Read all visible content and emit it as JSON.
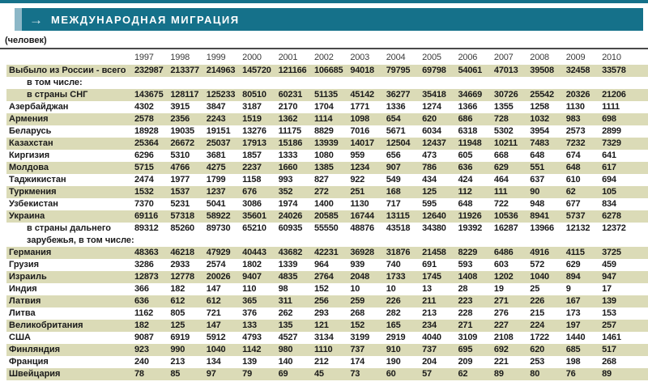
{
  "header": {
    "arrow_icon": "arrow-right",
    "title": "МЕЖДУНАРОДНАЯ МИГРАЦИЯ",
    "unit_label": "(человек)"
  },
  "colors": {
    "banner_teal": "#15718a",
    "banner_light_strip": "#8cb7c7",
    "row_shaded_beige": "#dbdbb7",
    "rule_dark": "#4a4a4a"
  },
  "chart_data": {
    "type": "table",
    "title": "МЕЖДУНАРОДНАЯ МИГРАЦИЯ",
    "unit": "(человек)",
    "legend_position": "none",
    "grid": false,
    "columns": [
      "1997",
      "1998",
      "1999",
      "2000",
      "2001",
      "2002",
      "2003",
      "2004",
      "2005",
      "2006",
      "2007",
      "2008",
      "2009",
      "2010"
    ],
    "rows": [
      {
        "label": "Выбыло из России - всего",
        "indent": 0,
        "shaded": true,
        "values": [
          232987,
          213377,
          214963,
          145720,
          121166,
          106685,
          94018,
          79795,
          69798,
          54061,
          47013,
          39508,
          32458,
          33578
        ]
      },
      {
        "label": "в том числе:",
        "indent": 1,
        "shaded": false,
        "values": []
      },
      {
        "label": "в страны СНГ",
        "indent": 1,
        "shaded": true,
        "values": [
          143675,
          128117,
          125233,
          80510,
          60231,
          51135,
          45142,
          36277,
          35418,
          34669,
          30726,
          25542,
          20326,
          21206
        ]
      },
      {
        "label": "Азербайджан",
        "indent": 0,
        "shaded": false,
        "values": [
          4302,
          3915,
          3847,
          3187,
          2170,
          1704,
          1771,
          1336,
          1274,
          1366,
          1355,
          1258,
          1130,
          1111
        ]
      },
      {
        "label": "Армения",
        "indent": 0,
        "shaded": true,
        "values": [
          2578,
          2356,
          2243,
          1519,
          1362,
          1114,
          1098,
          654,
          620,
          686,
          728,
          1032,
          983,
          698
        ]
      },
      {
        "label": "Беларусь",
        "indent": 0,
        "shaded": false,
        "values": [
          18928,
          19035,
          19151,
          13276,
          11175,
          8829,
          7016,
          5671,
          6034,
          6318,
          5302,
          3954,
          2573,
          2899
        ]
      },
      {
        "label": "Казахстан",
        "indent": 0,
        "shaded": true,
        "values": [
          25364,
          26672,
          25037,
          17913,
          15186,
          13939,
          14017,
          12504,
          12437,
          11948,
          10211,
          7483,
          7232,
          7329
        ]
      },
      {
        "label": "Киргизия",
        "indent": 0,
        "shaded": false,
        "values": [
          6296,
          5310,
          3681,
          1857,
          1333,
          1080,
          959,
          656,
          473,
          605,
          668,
          648,
          674,
          641
        ]
      },
      {
        "label": "Молдова",
        "indent": 0,
        "shaded": true,
        "values": [
          5715,
          4766,
          4275,
          2237,
          1660,
          1385,
          1234,
          907,
          786,
          636,
          629,
          551,
          648,
          617
        ]
      },
      {
        "label": "Таджикистан",
        "indent": 0,
        "shaded": false,
        "values": [
          2474,
          1977,
          1799,
          1158,
          993,
          827,
          922,
          549,
          434,
          424,
          464,
          637,
          610,
          694
        ]
      },
      {
        "label": "Туркмения",
        "indent": 0,
        "shaded": true,
        "values": [
          1532,
          1537,
          1237,
          676,
          352,
          272,
          251,
          168,
          125,
          112,
          111,
          90,
          62,
          105
        ]
      },
      {
        "label": "Узбекистан",
        "indent": 0,
        "shaded": false,
        "values": [
          7370,
          5231,
          5041,
          3086,
          1974,
          1400,
          1130,
          717,
          595,
          648,
          722,
          948,
          677,
          834
        ]
      },
      {
        "label": "Украина",
        "indent": 0,
        "shaded": true,
        "values": [
          69116,
          57318,
          58922,
          35601,
          24026,
          20585,
          16744,
          13115,
          12640,
          11926,
          10536,
          8941,
          5737,
          6278
        ]
      },
      {
        "label": "в страны дальнего зарубежья, в том числе:",
        "indent": 1,
        "shaded": false,
        "values": [
          89312,
          85260,
          89730,
          65210,
          60935,
          55550,
          48876,
          43518,
          34380,
          19392,
          16287,
          13966,
          12132,
          12372
        ]
      },
      {
        "label": "Германия",
        "indent": 0,
        "shaded": true,
        "values": [
          48363,
          46218,
          47929,
          40443,
          43682,
          42231,
          36928,
          31876,
          21458,
          8229,
          6486,
          4916,
          4115,
          3725
        ]
      },
      {
        "label": "Грузия",
        "indent": 0,
        "shaded": false,
        "values": [
          3286,
          2933,
          2574,
          1802,
          1339,
          964,
          939,
          740,
          691,
          593,
          603,
          572,
          629,
          459
        ]
      },
      {
        "label": "Израиль",
        "indent": 0,
        "shaded": true,
        "values": [
          12873,
          12778,
          20026,
          9407,
          4835,
          2764,
          2048,
          1733,
          1745,
          1408,
          1202,
          1040,
          894,
          947
        ]
      },
      {
        "label": "Индия",
        "indent": 0,
        "shaded": false,
        "values": [
          366,
          182,
          147,
          110,
          98,
          152,
          10,
          10,
          13,
          28,
          19,
          25,
          9,
          17
        ]
      },
      {
        "label": "Латвия",
        "indent": 0,
        "shaded": true,
        "values": [
          636,
          612,
          612,
          365,
          311,
          256,
          259,
          226,
          211,
          223,
          271,
          226,
          167,
          139
        ]
      },
      {
        "label": "Литва",
        "indent": 0,
        "shaded": false,
        "values": [
          1162,
          805,
          721,
          376,
          262,
          293,
          268,
          282,
          213,
          228,
          276,
          215,
          173,
          153
        ]
      },
      {
        "label": "Великобритания",
        "indent": 0,
        "shaded": true,
        "values": [
          182,
          125,
          147,
          133,
          135,
          121,
          152,
          165,
          234,
          271,
          227,
          224,
          197,
          257
        ]
      },
      {
        "label": "США",
        "indent": 0,
        "shaded": false,
        "values": [
          9087,
          6919,
          5912,
          4793,
          4527,
          3134,
          3199,
          2919,
          4040,
          3109,
          2108,
          1722,
          1440,
          1461
        ]
      },
      {
        "label": "Финляндия",
        "indent": 0,
        "shaded": true,
        "values": [
          923,
          990,
          1040,
          1142,
          980,
          1110,
          737,
          910,
          737,
          695,
          692,
          620,
          685,
          517
        ]
      },
      {
        "label": "Франция",
        "indent": 0,
        "shaded": false,
        "values": [
          240,
          213,
          134,
          139,
          140,
          212,
          174,
          190,
          204,
          209,
          221,
          253,
          198,
          268
        ]
      },
      {
        "label": "Швейцария",
        "indent": 0,
        "shaded": true,
        "values": [
          78,
          85,
          97,
          79,
          69,
          45,
          73,
          60,
          57,
          62,
          89,
          80,
          76,
          89
        ]
      }
    ]
  }
}
